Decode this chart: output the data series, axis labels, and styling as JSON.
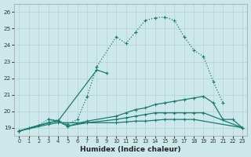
{
  "title": "",
  "xlabel": "Humidex (Indice chaleur)",
  "ylabel": "",
  "bg_color": "#cde8ea",
  "grid_color": "#b8d4d6",
  "line_color": "#1a7a6e",
  "xlim": [
    -0.5,
    23.5
  ],
  "ylim": [
    18.5,
    26.5
  ],
  "yticks": [
    19,
    20,
    21,
    22,
    23,
    24,
    25,
    26
  ],
  "xticks": [
    0,
    1,
    2,
    3,
    4,
    5,
    6,
    7,
    8,
    9,
    10,
    11,
    12,
    13,
    14,
    15,
    16,
    17,
    18,
    19,
    20,
    21,
    22,
    23
  ],
  "series": [
    {
      "x": [
        0,
        1,
        2,
        3,
        4,
        5,
        6,
        7,
        8,
        10,
        11,
        12,
        13,
        14,
        15,
        16,
        17,
        18,
        19,
        20,
        21
      ],
      "y": [
        18.8,
        19.0,
        19.15,
        19.5,
        19.45,
        19.2,
        19.5,
        20.9,
        22.7,
        24.5,
        24.1,
        24.8,
        25.5,
        25.65,
        25.7,
        25.5,
        24.5,
        23.7,
        23.3,
        21.8,
        20.5
      ],
      "linestyle": "dotted"
    },
    {
      "x": [
        3,
        4,
        8,
        9
      ],
      "y": [
        19.5,
        19.4,
        22.5,
        22.3
      ],
      "linestyle": "solid"
    },
    {
      "x": [
        0,
        3,
        4,
        5,
        7,
        10,
        11,
        12,
        13,
        14,
        15,
        16,
        17,
        18,
        19,
        20,
        21,
        22,
        23
      ],
      "y": [
        18.8,
        19.3,
        19.4,
        19.1,
        19.4,
        19.7,
        19.9,
        20.1,
        20.2,
        20.4,
        20.5,
        20.6,
        20.7,
        20.8,
        20.9,
        20.5,
        19.5,
        19.5,
        19.0
      ],
      "linestyle": "solid"
    },
    {
      "x": [
        0,
        3,
        4,
        5,
        7,
        10,
        11,
        12,
        13,
        14,
        15,
        16,
        17,
        18,
        19,
        23
      ],
      "y": [
        18.8,
        19.3,
        19.4,
        19.1,
        19.3,
        19.5,
        19.6,
        19.7,
        19.8,
        19.9,
        19.9,
        19.9,
        19.9,
        19.9,
        19.9,
        19.0
      ],
      "linestyle": "solid"
    },
    {
      "x": [
        0,
        3,
        4,
        10,
        11,
        12,
        13,
        14,
        15,
        16,
        17,
        18,
        23
      ],
      "y": [
        18.8,
        19.2,
        19.3,
        19.3,
        19.35,
        19.4,
        19.4,
        19.45,
        19.5,
        19.5,
        19.5,
        19.5,
        19.0
      ],
      "linestyle": "solid"
    }
  ]
}
